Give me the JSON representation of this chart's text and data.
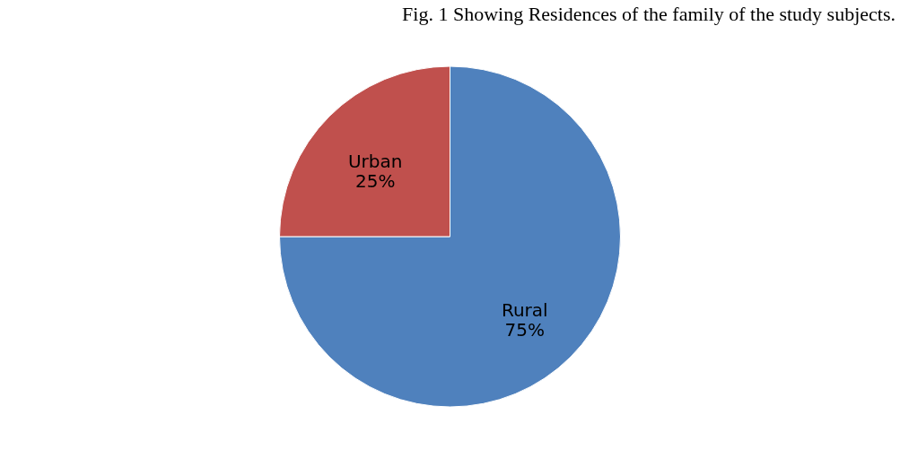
{
  "chart_data": {
    "type": "pie",
    "title": "Fig. 1 Showing Residences of the family of the study subjects.",
    "categories": [
      "Rural",
      "Urban"
    ],
    "values": [
      75,
      25
    ],
    "value_labels": [
      "75%",
      "25%"
    ],
    "colors": [
      "#4f81bd",
      "#c0504d"
    ],
    "legend": false
  }
}
